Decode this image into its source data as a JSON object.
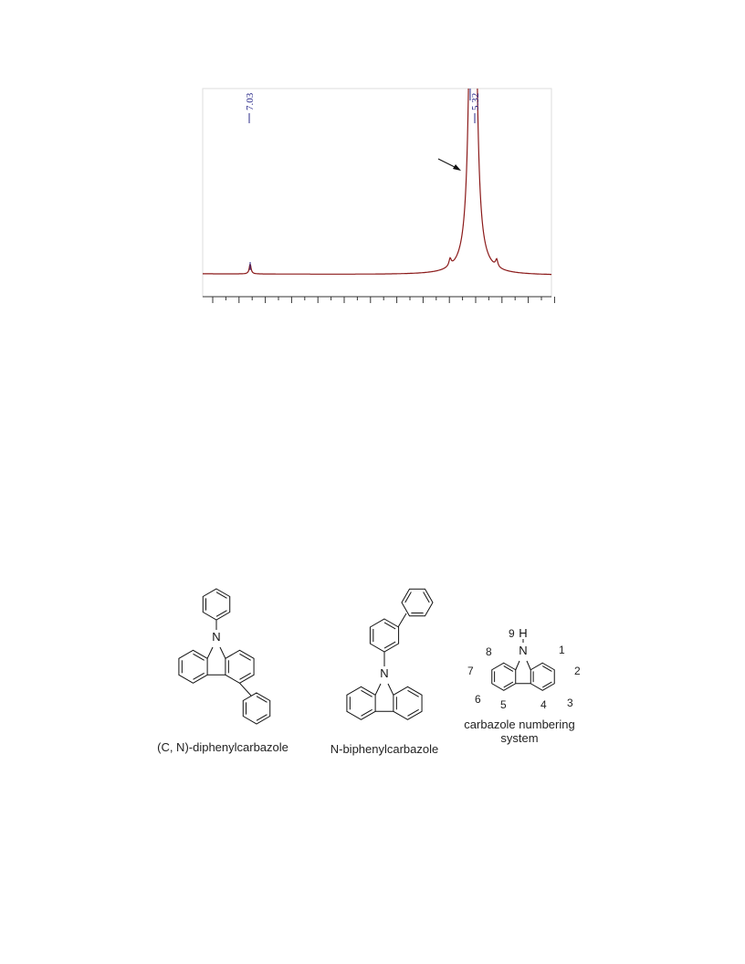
{
  "spectrum": {
    "peak_labels": [
      "7.03",
      "5.32"
    ]
  },
  "structures": [
    {
      "atom_labels": [
        "N"
      ],
      "caption": "(C, N)-diphenylcarbazole"
    },
    {
      "atom_labels": [
        "N"
      ],
      "caption": "N-biphenylcarbazole"
    },
    {
      "atom_labels": [
        "N",
        "H"
      ],
      "position_numbers": [
        "1",
        "2",
        "3",
        "4",
        "5",
        "6",
        "7",
        "8",
        "9"
      ],
      "caption": [
        "carbazole numbering",
        "system"
      ]
    }
  ]
}
